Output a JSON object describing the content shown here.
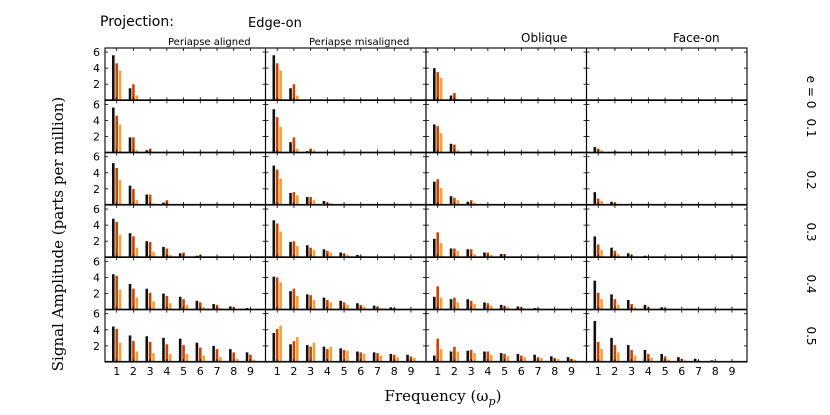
{
  "header": {
    "projection_label": "Projection:",
    "edge_on_label": "Edge-on",
    "columns": [
      "Periapse aligned",
      "Periapse misaligned",
      "Oblique",
      "Face-on"
    ]
  },
  "axes": {
    "ylabel": "Signal Amplitude (parts per million)",
    "xlabel": "Frequency (ω",
    "xlabel_sub": "p",
    "xlabel_close": ")",
    "xticks": [
      "1",
      "2",
      "3",
      "4",
      "5",
      "6",
      "7",
      "8",
      "9"
    ],
    "yticks": [
      "2",
      "4",
      "6"
    ],
    "ylim": [
      0,
      6.5
    ],
    "xlim": [
      0.3,
      9.9
    ]
  },
  "rows": [
    "e = 0",
    "0.1",
    "0.2",
    "0.3",
    "0.4",
    "0.5"
  ],
  "colors": {
    "series_black": "#111111",
    "series_red": "#cc4400",
    "series_orange": "#f5a030"
  },
  "chart_data": {
    "type": "bar",
    "title": "",
    "xlabel": "Frequency (ω_p)",
    "ylabel": "Signal Amplitude (parts per million)",
    "ylim": [
      0,
      6.5
    ],
    "categories": [
      "1",
      "2",
      "3",
      "4",
      "5",
      "6",
      "7",
      "8",
      "9"
    ],
    "series_names": [
      "black",
      "red",
      "orange"
    ],
    "panels": [
      {
        "row": "e = 0",
        "column": "Periapse aligned",
        "black": [
          5.6,
          1.5,
          0,
          0,
          0,
          0,
          0,
          0,
          0
        ],
        "red": [
          4.6,
          2.0,
          0,
          0,
          0,
          0,
          0,
          0,
          0
        ],
        "orange": [
          3.7,
          0.6,
          0,
          0,
          0,
          0,
          0,
          0,
          0
        ]
      },
      {
        "row": "e = 0",
        "column": "Periapse misaligned",
        "black": [
          5.6,
          1.5,
          0,
          0,
          0,
          0,
          0,
          0,
          0
        ],
        "red": [
          4.6,
          2.0,
          0,
          0,
          0,
          0,
          0,
          0,
          0
        ],
        "orange": [
          3.7,
          0.6,
          0,
          0,
          0,
          0,
          0,
          0,
          0
        ]
      },
      {
        "row": "e = 0",
        "column": "Oblique",
        "black": [
          4.0,
          0.6,
          0,
          0,
          0,
          0,
          0,
          0,
          0
        ],
        "red": [
          3.5,
          0.9,
          0,
          0,
          0,
          0,
          0,
          0,
          0
        ],
        "orange": [
          2.8,
          0.2,
          0,
          0,
          0,
          0,
          0,
          0,
          0
        ]
      },
      {
        "row": "e = 0",
        "column": "Face-on",
        "black": [
          0,
          0,
          0,
          0,
          0,
          0,
          0,
          0,
          0
        ],
        "red": [
          0,
          0,
          0,
          0,
          0,
          0,
          0,
          0,
          0
        ],
        "orange": [
          0,
          0,
          0,
          0,
          0,
          0,
          0,
          0,
          0
        ]
      },
      {
        "row": "0.1",
        "column": "Periapse aligned",
        "black": [
          5.6,
          1.9,
          0.3,
          0,
          0,
          0,
          0,
          0,
          0
        ],
        "red": [
          4.6,
          1.9,
          0.5,
          0,
          0,
          0,
          0,
          0,
          0
        ],
        "orange": [
          3.5,
          0.3,
          0,
          0,
          0,
          0,
          0,
          0,
          0
        ]
      },
      {
        "row": "0.1",
        "column": "Periapse misaligned",
        "black": [
          5.4,
          1.3,
          0.2,
          0,
          0,
          0,
          0,
          0,
          0
        ],
        "red": [
          4.4,
          1.9,
          0.5,
          0,
          0,
          0,
          0,
          0,
          0
        ],
        "orange": [
          3.2,
          0.5,
          0.3,
          0,
          0,
          0,
          0,
          0,
          0
        ]
      },
      {
        "row": "0.1",
        "column": "Oblique",
        "black": [
          3.5,
          1.1,
          0,
          0,
          0,
          0,
          0,
          0,
          0
        ],
        "red": [
          3.3,
          1.0,
          0.2,
          0,
          0,
          0,
          0,
          0,
          0
        ],
        "orange": [
          2.4,
          0.3,
          0,
          0,
          0,
          0,
          0,
          0,
          0
        ]
      },
      {
        "row": "0.1",
        "column": "Face-on",
        "black": [
          0.7,
          0,
          0,
          0,
          0,
          0,
          0,
          0,
          0
        ],
        "red": [
          0.5,
          0.2,
          0,
          0,
          0,
          0,
          0,
          0,
          0
        ],
        "orange": [
          0.3,
          0,
          0,
          0,
          0,
          0,
          0,
          0,
          0
        ]
      },
      {
        "row": "0.2",
        "column": "Periapse aligned",
        "black": [
          5.2,
          2.4,
          1.3,
          0.3,
          0,
          0,
          0,
          0,
          0
        ],
        "red": [
          4.6,
          2.0,
          1.3,
          0.6,
          0,
          0,
          0,
          0,
          0
        ],
        "orange": [
          3.1,
          0.6,
          0.2,
          0,
          0,
          0,
          0,
          0,
          0
        ]
      },
      {
        "row": "0.2",
        "column": "Periapse misaligned",
        "black": [
          4.9,
          1.5,
          1.0,
          0.5,
          0,
          0,
          0,
          0,
          0
        ],
        "red": [
          4.4,
          1.6,
          1.0,
          0.3,
          0,
          0,
          0,
          0,
          0
        ],
        "orange": [
          3.3,
          1.2,
          0.6,
          0.2,
          0,
          0,
          0,
          0,
          0
        ]
      },
      {
        "row": "0.2",
        "column": "Oblique",
        "black": [
          2.9,
          1.1,
          0.4,
          0,
          0,
          0,
          0,
          0,
          0
        ],
        "red": [
          3.2,
          0.9,
          0.6,
          0,
          0,
          0,
          0,
          0,
          0
        ],
        "orange": [
          2.1,
          0.6,
          0.3,
          0,
          0,
          0,
          0,
          0,
          0
        ]
      },
      {
        "row": "0.2",
        "column": "Face-on",
        "black": [
          1.6,
          0.4,
          0,
          0,
          0,
          0,
          0,
          0,
          0
        ],
        "red": [
          0.8,
          0.3,
          0,
          0,
          0,
          0,
          0,
          0,
          0
        ],
        "orange": [
          0.5,
          0,
          0,
          0,
          0,
          0,
          0,
          0,
          0
        ]
      },
      {
        "row": "0.3",
        "column": "Periapse aligned",
        "black": [
          4.8,
          3.0,
          2.0,
          1.3,
          0.5,
          0.2,
          0,
          0,
          0
        ],
        "red": [
          4.4,
          2.6,
          1.9,
          1.1,
          0.6,
          0.3,
          0,
          0,
          0
        ],
        "orange": [
          2.8,
          1.2,
          0.7,
          0.3,
          0,
          0,
          0,
          0,
          0
        ]
      },
      {
        "row": "0.3",
        "column": "Periapse misaligned",
        "black": [
          4.6,
          1.9,
          1.5,
          1.0,
          0.6,
          0.3,
          0,
          0,
          0
        ],
        "red": [
          4.2,
          2.0,
          1.2,
          0.8,
          0.5,
          0.2,
          0,
          0,
          0
        ],
        "orange": [
          3.2,
          1.4,
          0.9,
          0.6,
          0.3,
          0,
          0,
          0,
          0
        ]
      },
      {
        "row": "0.3",
        "column": "Oblique",
        "black": [
          2.3,
          1.1,
          1.0,
          0.6,
          0.4,
          0,
          0,
          0,
          0
        ],
        "red": [
          3.1,
          1.1,
          1.0,
          0.6,
          0.4,
          0,
          0,
          0,
          0
        ],
        "orange": [
          1.8,
          0.8,
          0.4,
          0.3,
          0,
          0,
          0,
          0,
          0
        ]
      },
      {
        "row": "0.3",
        "column": "Face-on",
        "black": [
          2.6,
          1.2,
          0.5,
          0.2,
          0,
          0,
          0,
          0,
          0
        ],
        "red": [
          1.6,
          0.8,
          0.3,
          0,
          0,
          0,
          0,
          0,
          0
        ],
        "orange": [
          0.9,
          0.4,
          0,
          0,
          0,
          0,
          0,
          0,
          0
        ]
      },
      {
        "row": "0.4",
        "column": "Periapse aligned",
        "black": [
          4.4,
          3.2,
          2.6,
          2.0,
          1.6,
          1.1,
          0.7,
          0.4,
          0.2
        ],
        "red": [
          4.2,
          2.6,
          2.1,
          1.7,
          1.3,
          0.9,
          0.6,
          0.3,
          0.1
        ],
        "orange": [
          2.5,
          1.5,
          1.0,
          0.8,
          0.6,
          0.3,
          0.2,
          0,
          0
        ]
      },
      {
        "row": "0.4",
        "column": "Periapse misaligned",
        "black": [
          4.1,
          2.3,
          1.9,
          1.5,
          1.1,
          0.8,
          0.5,
          0.3,
          0
        ],
        "red": [
          4.0,
          2.6,
          1.8,
          1.2,
          0.9,
          0.6,
          0.4,
          0.2,
          0
        ],
        "orange": [
          3.4,
          1.7,
          1.2,
          0.9,
          0.6,
          0.4,
          0.2,
          0,
          0
        ]
      },
      {
        "row": "0.4",
        "column": "Oblique",
        "black": [
          1.6,
          1.3,
          1.3,
          0.9,
          0.6,
          0.4,
          0.2,
          0,
          0
        ],
        "red": [
          2.9,
          1.5,
          1.1,
          0.8,
          0.5,
          0.3,
          0.2,
          0,
          0
        ],
        "orange": [
          1.5,
          0.9,
          0.7,
          0.5,
          0.3,
          0.2,
          0,
          0,
          0
        ]
      },
      {
        "row": "0.4",
        "column": "Face-on",
        "black": [
          3.6,
          1.9,
          1.2,
          0.6,
          0.3,
          0,
          0,
          0,
          0
        ],
        "red": [
          2.1,
          1.3,
          0.7,
          0.3,
          0.2,
          0,
          0,
          0,
          0
        ],
        "orange": [
          1.3,
          0.6,
          0.3,
          0,
          0,
          0,
          0,
          0,
          0
        ]
      },
      {
        "row": "0.5",
        "column": "Periapse aligned",
        "black": [
          4.4,
          3.3,
          3.2,
          3.0,
          2.9,
          2.4,
          2.0,
          1.6,
          1.2
        ],
        "red": [
          4.1,
          2.6,
          2.5,
          2.2,
          2.1,
          1.8,
          1.6,
          1.2,
          0.9
        ],
        "orange": [
          2.4,
          1.3,
          1.1,
          1.0,
          1.0,
          0.8,
          0.6,
          0.4,
          0.3
        ]
      },
      {
        "row": "0.5",
        "column": "Periapse misaligned",
        "black": [
          3.6,
          2.2,
          2.1,
          1.9,
          1.7,
          1.3,
          1.2,
          1.0,
          0.9
        ],
        "red": [
          4.1,
          2.6,
          1.9,
          1.6,
          1.5,
          1.2,
          1.1,
          0.9,
          0.7
        ],
        "orange": [
          4.5,
          3.1,
          2.4,
          1.9,
          1.4,
          1.0,
          0.8,
          0.6,
          0.5
        ]
      },
      {
        "row": "0.5",
        "column": "Oblique",
        "black": [
          0.8,
          1.3,
          1.4,
          1.3,
          1.1,
          1.0,
          0.9,
          0.7,
          0.6
        ],
        "red": [
          2.9,
          1.9,
          1.5,
          1.3,
          1.0,
          0.8,
          0.6,
          0.5,
          0.4
        ],
        "orange": [
          1.6,
          1.3,
          1.1,
          0.9,
          0.7,
          0.6,
          0.5,
          0.4,
          0.3
        ]
      },
      {
        "row": "0.5",
        "column": "Face-on",
        "black": [
          5.1,
          3.0,
          2.1,
          1.5,
          1.0,
          0.6,
          0.4,
          0.2,
          0
        ],
        "red": [
          2.5,
          2.1,
          1.5,
          1.0,
          0.7,
          0.4,
          0.2,
          0,
          0
        ],
        "orange": [
          1.6,
          1.2,
          0.8,
          0.5,
          0.3,
          0.2,
          0,
          0,
          0
        ]
      }
    ]
  }
}
